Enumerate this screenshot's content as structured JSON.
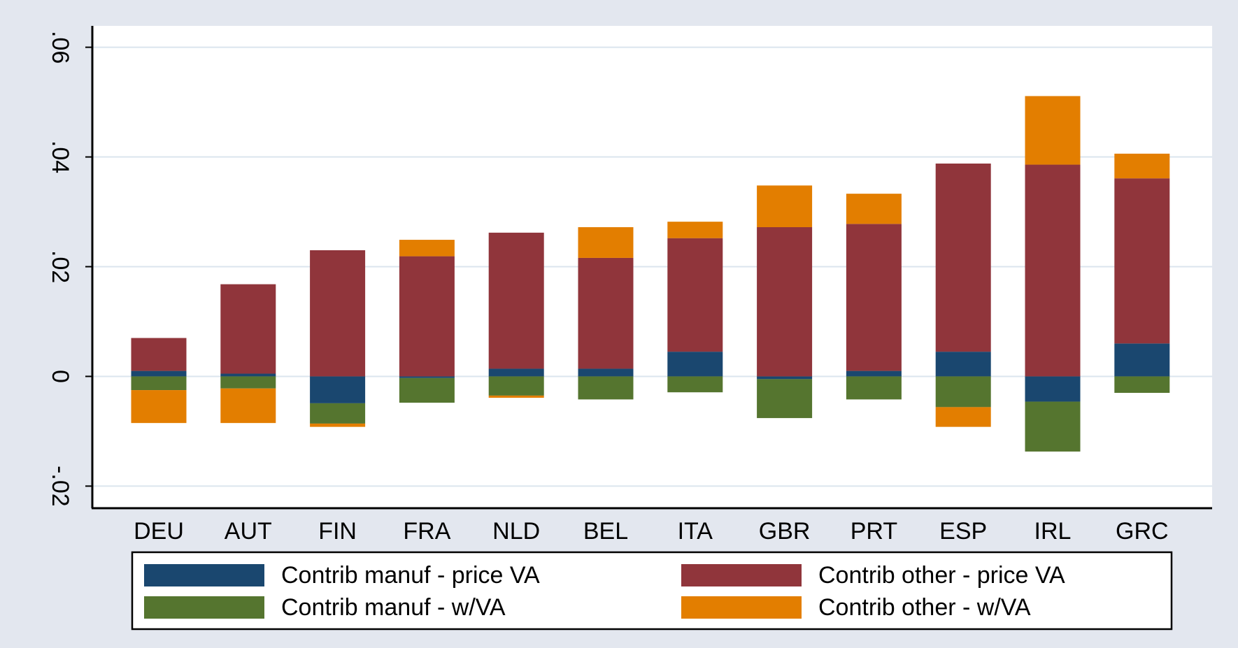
{
  "chart_data": {
    "type": "stacked_bar",
    "categories": [
      "DEU",
      "AUT",
      "FIN",
      "FRA",
      "NLD",
      "BEL",
      "ITA",
      "GBR",
      "PRT",
      "ESP",
      "IRL",
      "GRC"
    ],
    "series": [
      {
        "name": "Contrib manuf - price VA",
        "color": "#1a476f",
        "values": [
          0.001,
          0.0005,
          -0.0049,
          -0.0003,
          0.0014,
          0.0014,
          0.0045,
          -0.0005,
          0.001,
          0.0045,
          -0.0046,
          0.006
        ]
      },
      {
        "name": "Contrib manuf - w/VA",
        "color": "#55752f",
        "values": [
          -0.0025,
          -0.0022,
          -0.0037,
          -0.0045,
          -0.0035,
          -0.0042,
          -0.0029,
          -0.0071,
          -0.0042,
          -0.0056,
          -0.0091,
          -0.003
        ]
      },
      {
        "name": "Contrib other - price VA",
        "color": "#90353b",
        "values": [
          0.006,
          0.0163,
          0.023,
          0.0219,
          0.0248,
          0.0202,
          0.0207,
          0.0272,
          0.0268,
          0.0343,
          0.0386,
          0.0301
        ]
      },
      {
        "name": "Contrib other - w/VA",
        "color": "#e37e00",
        "values": [
          -0.006,
          -0.0063,
          -0.0006,
          0.003,
          -0.0004,
          0.0056,
          0.003,
          0.0076,
          0.0055,
          -0.0036,
          0.0125,
          0.0045
        ]
      }
    ],
    "ylim": [
      -0.0239,
      0.0639
    ],
    "yticks": [
      {
        "value": -0.02,
        "label": "-.02"
      },
      {
        "value": 0,
        "label": "0"
      },
      {
        "value": 0.02,
        "label": ".02"
      },
      {
        "value": 0.04,
        "label": ".04"
      },
      {
        "value": 0.06,
        "label": ".06"
      }
    ],
    "grid": true
  }
}
